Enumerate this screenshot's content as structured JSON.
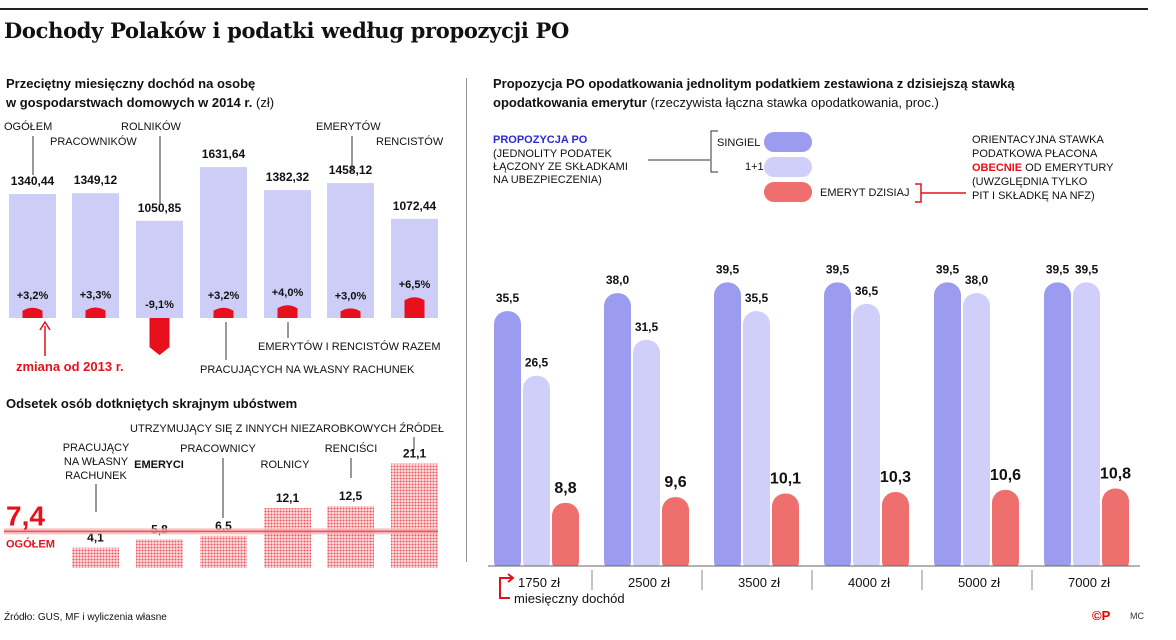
{
  "title": "Dochody Polaków i podatki według propozycji PO",
  "left_title_line1": "Przeciętny miesięczny dochód na osobę",
  "left_title_line2": "w gospodarstwach domowych w 2014 r.",
  "left_title_unit": "(zł)",
  "right_title_line1": "Propozycja PO opodatkowania jednolitym podatkiem zestawiona z dzisiejszą stawką",
  "right_title_line2": "opodatkowania emerytur",
  "right_title_note": "(rzeczywista łączna stawka opodatkowania, proc.)",
  "poverty_title": "Odsetek osób dotkniętych skrajnym ubóstwem",
  "source": "Źródło: GUS, MF i wyliczenia własne",
  "logo": "©P",
  "credit": "MC",
  "colors": {
    "income_bar": "#cdcdf7",
    "red": "#e8101c",
    "poverty": "#f0505a",
    "singiel": "#9b9bf0",
    "plus1": "#cfcffa",
    "emeryt": "#ef6e6e"
  },
  "chart_data": [
    {
      "type": "bar",
      "name": "income",
      "title": "Przeciętny miesięczny dochód na osobę w gospodarstwach domowych w 2014 r. (zł)",
      "categories": [
        "OGÓŁEM",
        "PRACOWNIKÓW",
        "ROLNIKÓW",
        "PRACUJĄCYCH NA WŁASNY RACHUNEK",
        "EMERYTÓW I RENCISTÓW RAZEM",
        "EMERYTÓW",
        "RENCISTÓW"
      ],
      "values": [
        1340.44,
        1349.12,
        1050.85,
        1631.64,
        1382.32,
        1458.12,
        1072.44
      ],
      "value_labels": [
        "1340,44",
        "1349,12",
        "1050,85",
        "1631,64",
        "1382,32",
        "1458,12",
        "1072,44"
      ],
      "change": [
        3.2,
        3.3,
        -9.1,
        3.2,
        4.0,
        3.0,
        6.5
      ],
      "change_labels": [
        "+3,2%",
        "+3,3%",
        "-9,1%",
        "+3,2%",
        "+4,0%",
        "+3,0%",
        "+6,5%"
      ],
      "change_note": "zmiana od 2013 r."
    },
    {
      "type": "bar",
      "name": "poverty",
      "title": "Odsetek osób dotkniętych skrajnym ubóstwem",
      "categories": [
        "PRACUJĄCY NA WŁASNY RACHUNEK",
        "EMERYCI",
        "PRACOWNICY",
        "ROLNICY",
        "RENCIŚCI",
        "UTRZYMUJĄCY SIĘ Z INNYCH NIEZAROBKOWYCH ŹRÓDEŁ"
      ],
      "values": [
        4.1,
        5.8,
        6.5,
        12.1,
        12.5,
        21.1
      ],
      "value_labels": [
        "4,1",
        "5,8",
        "6,5",
        "12,1",
        "12,5",
        "21,1"
      ],
      "reference": {
        "label": "OGÓŁEM",
        "value": 7.4,
        "value_label": "7,4"
      }
    },
    {
      "type": "bar",
      "name": "tax",
      "title": "Propozycja PO opodatkowania jednolitym podatkiem zestawiona z dzisiejszą stawką opodatkowania emerytur",
      "categories": [
        "1750 zł",
        "2500 zł",
        "3500 zł",
        "4000 zł",
        "5000 zł",
        "7000 zł"
      ],
      "xlabel": "miesięczny dochód",
      "ylim": [
        0,
        42
      ],
      "series": [
        {
          "name": "SINGIEL",
          "values": [
            35.5,
            38.0,
            39.5,
            39.5,
            39.5,
            39.5
          ],
          "labels": [
            "35,5",
            "38,0",
            "39,5",
            "39,5",
            "39,5",
            "39,5"
          ]
        },
        {
          "name": "1+1",
          "values": [
            26.5,
            31.5,
            35.5,
            36.5,
            38.0,
            39.5
          ],
          "labels": [
            "26,5",
            "31,5",
            "35,5",
            "36,5",
            "38,0",
            "39,5"
          ]
        },
        {
          "name": "EMERYT DZISIAJ",
          "values": [
            8.8,
            9.6,
            10.1,
            10.3,
            10.6,
            10.8
          ],
          "labels": [
            "8,8",
            "9,6",
            "10,1",
            "10,3",
            "10,6",
            "10,8"
          ]
        }
      ],
      "legend": {
        "proposal_title": "PROPOZYCJA PO",
        "proposal_desc": [
          "(JEDNOLITY PODATEK",
          "ŁĄCZONY ZE SKŁADKAMI",
          "NA UBEZPIECZENIA)"
        ],
        "current_lines": [
          "ORIENTACYJNA STAWKA",
          "PODATKOWA PŁACONA",
          "OD EMERYTURY",
          "(UWZGLĘDNIA TYLKO",
          "PIT I SKŁADKĘ NA NFZ)"
        ],
        "current_highlight": "OBECNIE"
      }
    }
  ]
}
